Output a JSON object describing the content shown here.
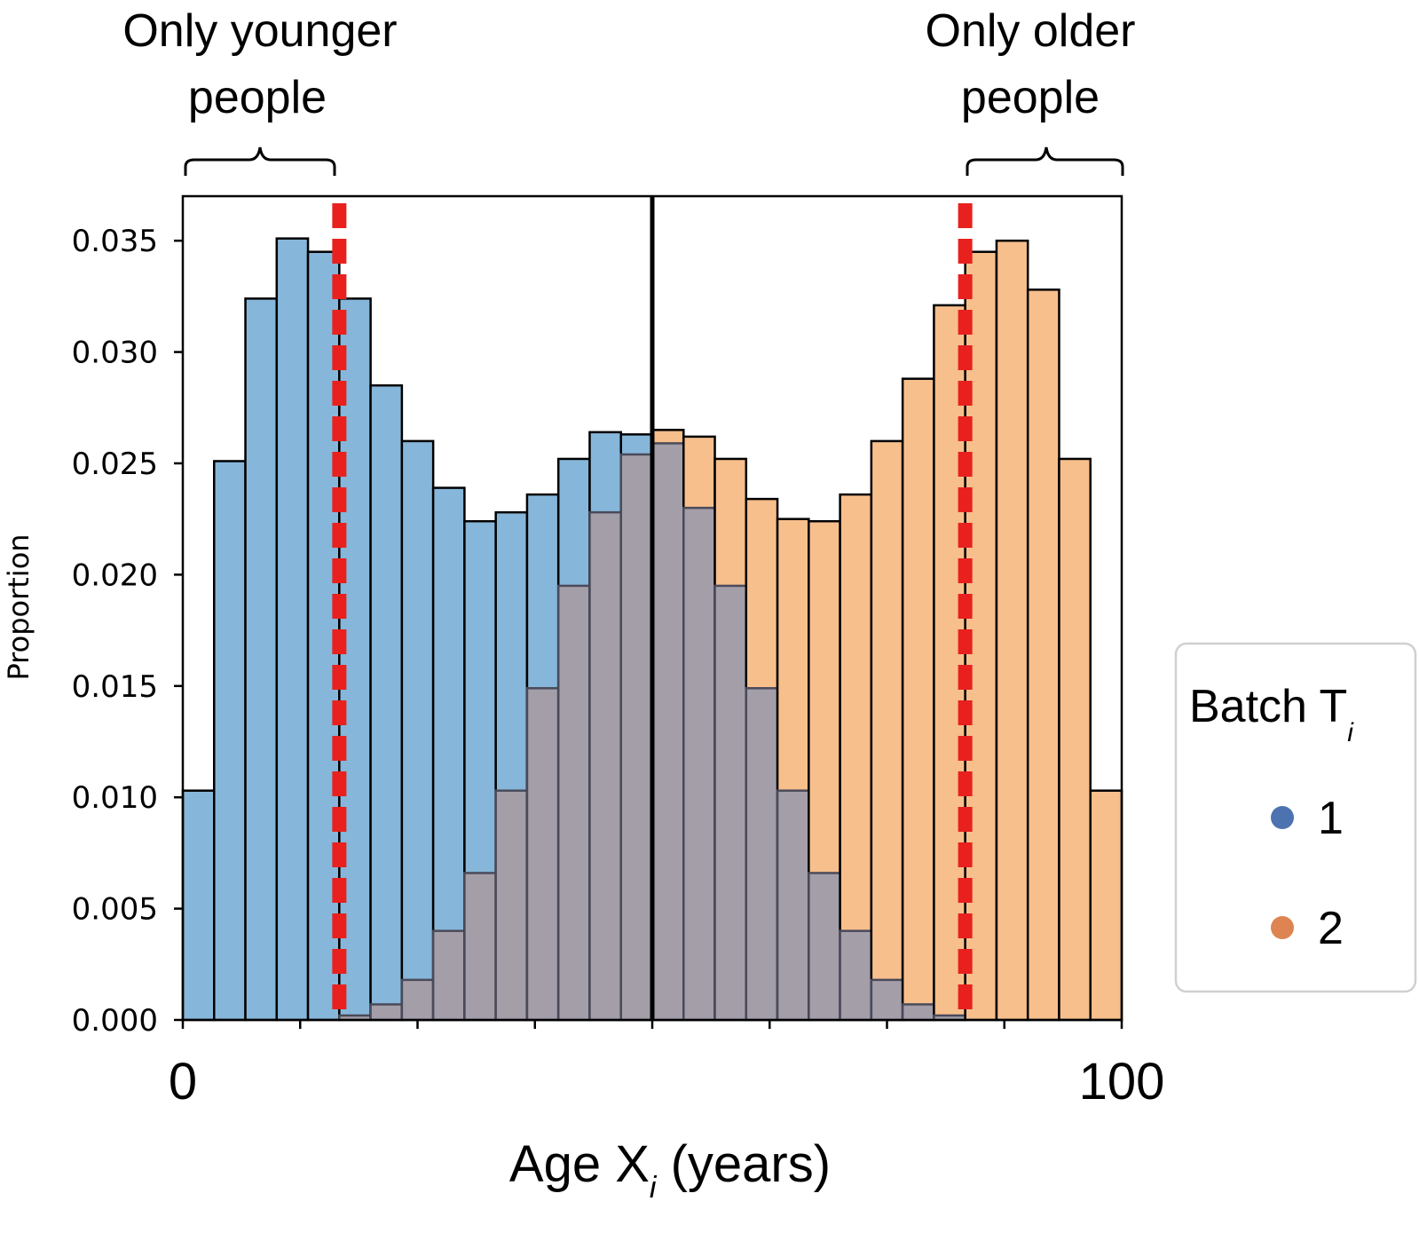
{
  "chart_data": {
    "type": "bar",
    "xlabel": "Age X",
    "xlabel_sub": "i",
    "xlabel_tail": " (years)",
    "ylabel": "Proportion",
    "xlim": [
      0,
      100
    ],
    "ylim": [
      0,
      0.037
    ],
    "x_tick_labels": [
      "0",
      "100"
    ],
    "x_minor_ticks": [
      0,
      12.5,
      25,
      37.5,
      50,
      62.5,
      75,
      87.5,
      100
    ],
    "y_ticks": [
      0.0,
      0.005,
      0.01,
      0.015,
      0.02,
      0.025,
      0.03,
      0.035
    ],
    "y_tick_labels": [
      "0.000",
      "0.005",
      "0.010",
      "0.015",
      "0.020",
      "0.025",
      "0.030",
      "0.035"
    ],
    "bin_edges": [
      0,
      3.333,
      6.667,
      10,
      13.333,
      16.667,
      20,
      23.333,
      26.667,
      30,
      33.333,
      36.667,
      40,
      43.333,
      46.667,
      50,
      53.333,
      56.667,
      60,
      63.333,
      66.667,
      70,
      73.333,
      76.667,
      80,
      83.333,
      86.667,
      90,
      93.333,
      96.667,
      100
    ],
    "series": [
      {
        "name": "1",
        "color": "#4c72b0",
        "fill": "#86b7da",
        "values": [
          0.0103,
          0.0251,
          0.0324,
          0.0351,
          0.0345,
          0.0324,
          0.0285,
          0.026,
          0.0239,
          0.0224,
          0.0228,
          0.0236,
          0.0252,
          0.0264,
          0.0263,
          0.0259,
          0.023,
          0.0195,
          0.0149,
          0.0103,
          0.0066,
          0.004,
          0.0018,
          0.0007,
          0.0002,
          0.0,
          0.0,
          0.0,
          0.0,
          0.0
        ]
      },
      {
        "name": "2",
        "color": "#dd8452",
        "fill": "#f7bf8c",
        "values": [
          0.0,
          0.0,
          0.0,
          0.0,
          0.0,
          0.0002,
          0.0007,
          0.0018,
          0.004,
          0.0066,
          0.0103,
          0.0149,
          0.0195,
          0.0228,
          0.0254,
          0.0265,
          0.0262,
          0.0252,
          0.0234,
          0.0225,
          0.0224,
          0.0236,
          0.026,
          0.0288,
          0.0321,
          0.0345,
          0.035,
          0.0328,
          0.0252,
          0.0103
        ]
      }
    ],
    "overlap_color": "#a39ea8",
    "reference_lines": [
      {
        "x": 50,
        "style": "solid",
        "color": "#000000"
      },
      {
        "x": 16.67,
        "style": "dashed",
        "color": "#e8211e"
      },
      {
        "x": 83.33,
        "style": "dashed",
        "color": "#e8211e"
      }
    ],
    "annotations": [
      {
        "line1": "Only younger",
        "line2": "people",
        "x_from": 0,
        "x_to": 16.67
      },
      {
        "line1": "Only older",
        "line2": "people",
        "x_from": 83.33,
        "x_to": 100
      }
    ],
    "legend": {
      "title": "Batch T",
      "title_sub": "i",
      "placement": "right",
      "entries": [
        "1",
        "2"
      ]
    }
  }
}
